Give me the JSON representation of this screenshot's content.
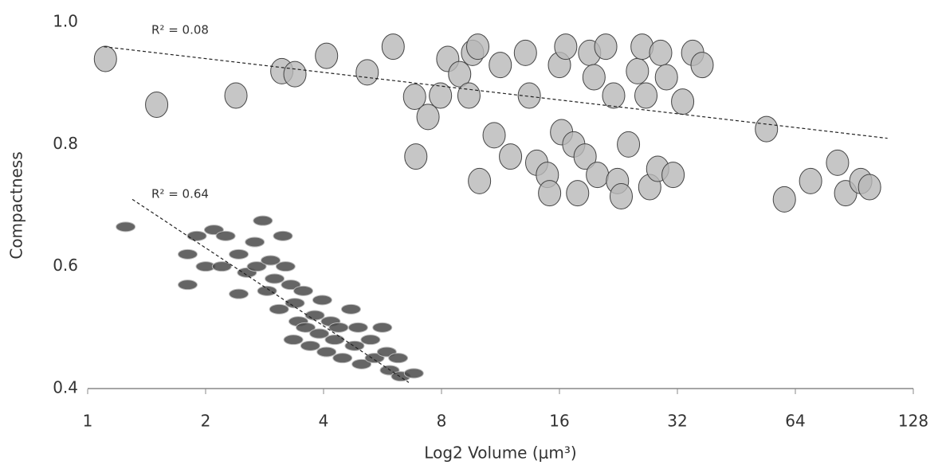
{
  "chart_data": {
    "type": "scatter",
    "x_label": "Log2 Volume (μm³)",
    "y_label": "Compactness",
    "xscale": "log2",
    "xlim": [
      1,
      128
    ],
    "xticks": [
      1,
      2,
      4,
      8,
      16,
      32,
      64,
      128
    ],
    "ylim": [
      0.4,
      1.0
    ],
    "yticks": [
      0.4,
      0.6,
      0.8,
      {
        "value": 1.0,
        "label": "1.0"
      }
    ],
    "annotations": [
      "R² = 0.08",
      "R² = 0.64"
    ],
    "series": [
      {
        "color": "#b8b8b8",
        "x": [
          1.11,
          1.5,
          2.39,
          3.13,
          3.38,
          4.07,
          5.17,
          6.02,
          6.83,
          7.39,
          6.88,
          7.95,
          8.3,
          8.9,
          9.4,
          9.6,
          9.9,
          10.0,
          10.9,
          11.3,
          12.0,
          13.1,
          13.4,
          14.0,
          14.9,
          15.1,
          16,
          16.2,
          16.6,
          17.4,
          17.8,
          18.6,
          19.1,
          19.6,
          20.0,
          21,
          22,
          22.5,
          23,
          24,
          25.3,
          26,
          26.6,
          27.2,
          28.5,
          29,
          30,
          31.2,
          33,
          35,
          37,
          54,
          60,
          70,
          82,
          86,
          94,
          99
        ],
        "values": [
          0.94,
          0.865,
          0.88,
          0.92,
          0.915,
          0.945,
          0.918,
          0.96,
          0.878,
          0.845,
          0.78,
          0.88,
          0.94,
          0.915,
          0.88,
          0.95,
          0.96,
          0.74,
          0.815,
          0.93,
          0.78,
          0.95,
          0.88,
          0.77,
          0.75,
          0.72,
          0.93,
          0.82,
          0.96,
          0.8,
          0.72,
          0.78,
          0.95,
          0.91,
          0.75,
          0.96,
          0.88,
          0.74,
          0.715,
          0.8,
          0.92,
          0.96,
          0.88,
          0.73,
          0.76,
          0.95,
          0.91,
          0.75,
          0.87,
          0.95,
          0.93,
          0.825,
          0.71,
          0.74,
          0.77,
          0.72,
          0.74,
          0.73
        ]
      },
      {
        "color": "#4a4a4a",
        "x": [
          1.25,
          1.8,
          1.8,
          1.9,
          2.0,
          2.1,
          2.2,
          2.25,
          2.43,
          2.43,
          2.55,
          2.67,
          2.7,
          2.8,
          2.87,
          2.93,
          3.0,
          3.08,
          3.15,
          3.2,
          3.3,
          3.35,
          3.38,
          3.45,
          3.55,
          3.6,
          3.7,
          3.8,
          3.9,
          3.97,
          4.07,
          4.17,
          4.27,
          4.37,
          4.47,
          4.7,
          4.8,
          4.9,
          5.0,
          5.27,
          5.4,
          5.65,
          5.8,
          5.9,
          6.2,
          6.3,
          6.8
        ],
        "values": [
          0.665,
          0.62,
          0.57,
          0.65,
          0.6,
          0.66,
          0.6,
          0.65,
          0.62,
          0.555,
          0.59,
          0.64,
          0.6,
          0.675,
          0.56,
          0.61,
          0.58,
          0.53,
          0.65,
          0.6,
          0.57,
          0.48,
          0.54,
          0.51,
          0.56,
          0.5,
          0.47,
          0.52,
          0.49,
          0.545,
          0.46,
          0.51,
          0.48,
          0.5,
          0.45,
          0.53,
          0.47,
          0.5,
          0.44,
          0.48,
          0.45,
          0.5,
          0.46,
          0.43,
          0.45,
          0.42,
          0.425
        ]
      }
    ],
    "trendlines": [
      {
        "x": [
          1.1,
          110
        ],
        "y": [
          0.96,
          0.81
        ]
      },
      {
        "x": [
          1.3,
          6.6
        ],
        "y": [
          0.71,
          0.41
        ]
      }
    ]
  }
}
